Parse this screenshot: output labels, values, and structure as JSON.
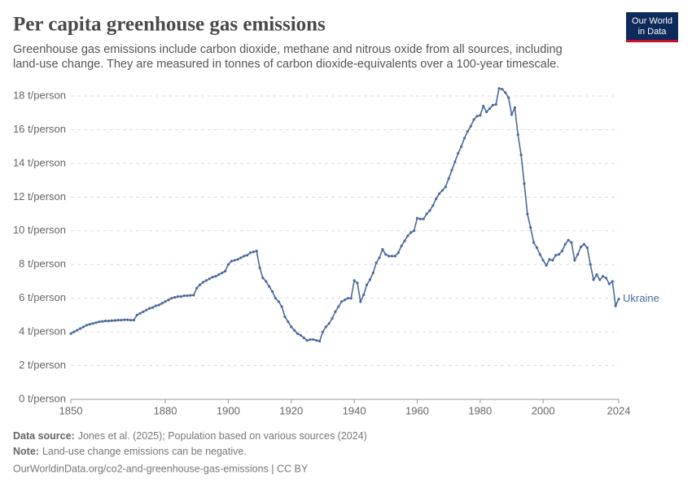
{
  "logo": {
    "line1": "Our World",
    "line2": "in Data"
  },
  "chart_data": {
    "type": "line",
    "title": "Per capita greenhouse gas emissions",
    "subtitle": [
      "Greenhouse gas emissions include carbon dioxide, methane and nitrous oxide from all sources, including",
      "land-use change. They are measured in tonnes of carbon dioxide-equivalents over a 100-year timescale."
    ],
    "source_label": "Data source:",
    "source": "Jones et al. (2025); Population based on various sources (2024)",
    "note_label": "Note:",
    "note": "Land-use change emissions can be negative.",
    "url": "OurWorldinData.org/co2-and-greenhouse-gas-emissions | CC BY",
    "x": [
      1850,
      1851,
      1852,
      1853,
      1854,
      1855,
      1856,
      1857,
      1858,
      1859,
      1860,
      1861,
      1862,
      1863,
      1864,
      1865,
      1866,
      1867,
      1868,
      1869,
      1870,
      1871,
      1872,
      1873,
      1874,
      1875,
      1876,
      1877,
      1878,
      1879,
      1880,
      1881,
      1882,
      1883,
      1884,
      1885,
      1886,
      1887,
      1888,
      1889,
      1890,
      1891,
      1892,
      1893,
      1894,
      1895,
      1896,
      1897,
      1898,
      1899,
      1900,
      1901,
      1902,
      1903,
      1904,
      1905,
      1906,
      1907,
      1908,
      1909,
      1910,
      1911,
      1912,
      1913,
      1914,
      1915,
      1916,
      1917,
      1918,
      1919,
      1920,
      1921,
      1922,
      1923,
      1924,
      1925,
      1926,
      1927,
      1928,
      1929,
      1930,
      1931,
      1932,
      1933,
      1934,
      1935,
      1936,
      1937,
      1938,
      1939,
      1940,
      1941,
      1942,
      1943,
      1944,
      1945,
      1946,
      1947,
      1948,
      1949,
      1950,
      1951,
      1952,
      1953,
      1954,
      1955,
      1956,
      1957,
      1958,
      1959,
      1960,
      1961,
      1962,
      1963,
      1964,
      1965,
      1966,
      1967,
      1968,
      1969,
      1970,
      1971,
      1972,
      1973,
      1974,
      1975,
      1976,
      1977,
      1978,
      1979,
      1980,
      1981,
      1982,
      1983,
      1984,
      1985,
      1986,
      1987,
      1988,
      1989,
      1990,
      1991,
      1992,
      1993,
      1994,
      1995,
      1996,
      1997,
      1998,
      1999,
      2000,
      2001,
      2002,
      2003,
      2004,
      2005,
      2006,
      2007,
      2008,
      2009,
      2010,
      2011,
      2012,
      2013,
      2014,
      2015,
      2016,
      2017,
      2018,
      2019,
      2020,
      2021,
      2022,
      2023,
      2024
    ],
    "series": [
      {
        "name": "Ukraine",
        "color": "#4c6a9c",
        "values": [
          3.9,
          4.0,
          4.1,
          4.2,
          4.3,
          4.4,
          4.45,
          4.5,
          4.55,
          4.6,
          4.62,
          4.65,
          4.65,
          4.67,
          4.68,
          4.7,
          4.7,
          4.72,
          4.72,
          4.7,
          4.7,
          5.0,
          5.1,
          5.2,
          5.3,
          5.4,
          5.45,
          5.55,
          5.6,
          5.7,
          5.8,
          5.9,
          6.0,
          6.05,
          6.1,
          6.1,
          6.15,
          6.15,
          6.17,
          6.18,
          6.6,
          6.8,
          6.95,
          7.05,
          7.15,
          7.25,
          7.3,
          7.4,
          7.5,
          7.6,
          8.0,
          8.2,
          8.25,
          8.3,
          8.4,
          8.5,
          8.55,
          8.7,
          8.75,
          8.8,
          7.8,
          7.2,
          7.0,
          6.7,
          6.4,
          6.0,
          5.8,
          5.5,
          4.9,
          4.6,
          4.3,
          4.1,
          3.9,
          3.8,
          3.65,
          3.5,
          3.55,
          3.55,
          3.5,
          3.45,
          4.0,
          4.3,
          4.5,
          4.8,
          5.2,
          5.5,
          5.8,
          5.9,
          6.0,
          6.0,
          7.05,
          6.9,
          5.8,
          6.2,
          6.8,
          7.1,
          7.5,
          8.1,
          8.4,
          8.9,
          8.6,
          8.5,
          8.5,
          8.5,
          8.7,
          9.1,
          9.4,
          9.7,
          9.9,
          10.0,
          10.75,
          10.7,
          10.7,
          11.0,
          11.2,
          11.5,
          11.9,
          12.2,
          12.4,
          12.6,
          13.1,
          13.6,
          14.1,
          14.6,
          15.0,
          15.5,
          15.9,
          16.2,
          16.6,
          16.8,
          16.85,
          17.4,
          17.05,
          17.25,
          17.45,
          17.5,
          18.45,
          18.4,
          18.2,
          17.9,
          16.9,
          17.3,
          15.7,
          14.5,
          12.8,
          11.0,
          10.2,
          9.3,
          9.0,
          8.6,
          8.25,
          7.95,
          8.3,
          8.25,
          8.55,
          8.6,
          8.8,
          9.2,
          9.45,
          9.3,
          8.25,
          8.6,
          9.05,
          9.2,
          9.0,
          8.0,
          7.1,
          7.4,
          7.1,
          7.3,
          7.2,
          6.85,
          7.0,
          5.55,
          5.95
        ]
      }
    ],
    "xlim": [
      1850,
      2024
    ],
    "xticks": [
      1850,
      1880,
      1900,
      1920,
      1940,
      1960,
      1980,
      2000,
      2024
    ],
    "ylim": [
      0,
      18
    ],
    "yticks": [
      {
        "value": 0,
        "label": "0 t/person"
      },
      {
        "value": 2,
        "label": "2 t/person"
      },
      {
        "value": 4,
        "label": "4 t/person"
      },
      {
        "value": 6,
        "label": "6 t/person"
      },
      {
        "value": 8,
        "label": "8 t/person"
      },
      {
        "value": 10,
        "label": "10 t/person"
      },
      {
        "value": 12,
        "label": "12 t/person"
      },
      {
        "value": 14,
        "label": "14 t/person"
      },
      {
        "value": 16,
        "label": "16 t/person"
      },
      {
        "value": 18,
        "label": "18 t/person"
      }
    ],
    "grid": true
  }
}
